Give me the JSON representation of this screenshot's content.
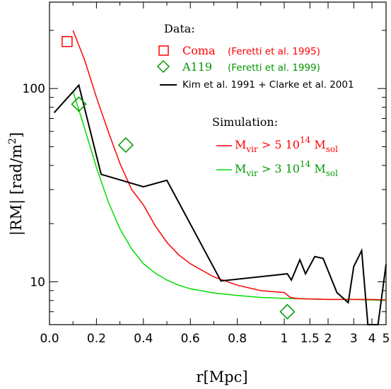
{
  "chart_data": {
    "type": "line",
    "xlabel": "r[Mpc]",
    "ylabel": "|RM| [rad/m",
    "ylabel_sup": "2",
    "ylabel_end": "]",
    "yscale": "log",
    "ylim": [
      6,
      280
    ],
    "yticks": [
      {
        "value": 10,
        "label": "10"
      },
      {
        "value": 100,
        "label": "100"
      }
    ],
    "xaxis_note": "piecewise: linear 0-1 Mpc, logarithmic 1-5 Mpc",
    "xticks": [
      {
        "value": 0.0,
        "label": "0.0"
      },
      {
        "value": 0.2,
        "label": "0.2"
      },
      {
        "value": 0.4,
        "label": "0.4"
      },
      {
        "value": 0.6,
        "label": "0.6"
      },
      {
        "value": 0.8,
        "label": "0.8"
      },
      {
        "value": 1,
        "label": "1"
      },
      {
        "value": 1.5,
        "label": "1.5"
      },
      {
        "value": 2,
        "label": "2"
      },
      {
        "value": 3,
        "label": "3"
      },
      {
        "value": 4,
        "label": "4"
      },
      {
        "value": 5,
        "label": "5"
      }
    ],
    "legend": {
      "data_heading": "Data:",
      "sim_heading": "Simulation:",
      "coma_name": "Coma",
      "coma_ref": "(Feretti et al. 1995)",
      "a119_name": "A119",
      "a119_ref": "(Feretti et al. 1999)",
      "kim_label": "Kim et al. 1991 + Clarke et al. 2001",
      "sim5": {
        "m": "M",
        "vir": "vir",
        "mid": " > 5 10",
        "exp": "14",
        "m2": " M",
        "sol": "sol"
      },
      "sim3": {
        "m": "M",
        "vir": "vir",
        "mid": " > 3 10",
        "exp": "14",
        "m2": " M",
        "sol": "sol"
      }
    },
    "colors": {
      "coma": "#ff0000",
      "a119": "#009900",
      "kim": "#000000",
      "sim5": "#ff0000",
      "sim3": "#00dd00"
    },
    "series": [
      {
        "key": "coma",
        "marker": "square",
        "x": [
          0.075
        ],
        "y": [
          175
        ]
      },
      {
        "key": "a119",
        "marker": "diamond",
        "x": [
          0.125,
          0.325,
          1.05
        ],
        "y": [
          83,
          51,
          7
        ]
      },
      {
        "key": "kim",
        "marker": "line",
        "x": [
          0.02,
          0.125,
          0.22,
          0.4,
          0.5,
          0.73,
          1.05,
          1.12,
          1.28,
          1.4,
          1.62,
          1.85,
          2.3,
          2.75,
          3.0,
          3.4,
          3.75,
          4.4,
          5.0
        ],
        "y": [
          75,
          104,
          36,
          31,
          33.5,
          10.1,
          11,
          10.2,
          13,
          11,
          13.5,
          13.2,
          8.8,
          7.8,
          12,
          14.5,
          6,
          6,
          12.3
        ]
      },
      {
        "key": "sim5",
        "marker": "line",
        "x": [
          0.1,
          0.15,
          0.2,
          0.25,
          0.3,
          0.35,
          0.4,
          0.45,
          0.5,
          0.55,
          0.6,
          0.7,
          0.8,
          0.9,
          1.0,
          1.1,
          1.2,
          1.5,
          2.0,
          3.0,
          4.0,
          5.0
        ],
        "y": [
          200,
          140,
          90,
          60,
          41,
          30,
          25,
          19.5,
          16,
          13.8,
          12.4,
          10.6,
          9.6,
          9.0,
          8.8,
          8.3,
          8.2,
          8.15,
          8.1,
          8.1,
          8.1,
          8.05
        ]
      },
      {
        "key": "sim3",
        "marker": "line",
        "x": [
          0.1,
          0.15,
          0.2,
          0.25,
          0.3,
          0.35,
          0.4,
          0.45,
          0.5,
          0.55,
          0.6,
          0.7,
          0.8,
          0.9,
          1.0,
          1.5,
          2.0,
          3.0,
          4.0,
          5.0
        ],
        "y": [
          97,
          62,
          39,
          26,
          18.8,
          14.8,
          12.4,
          11.1,
          10.2,
          9.6,
          9.2,
          8.75,
          8.5,
          8.3,
          8.2,
          8.15,
          8.1,
          8.1,
          8.05,
          8.0
        ]
      }
    ]
  }
}
